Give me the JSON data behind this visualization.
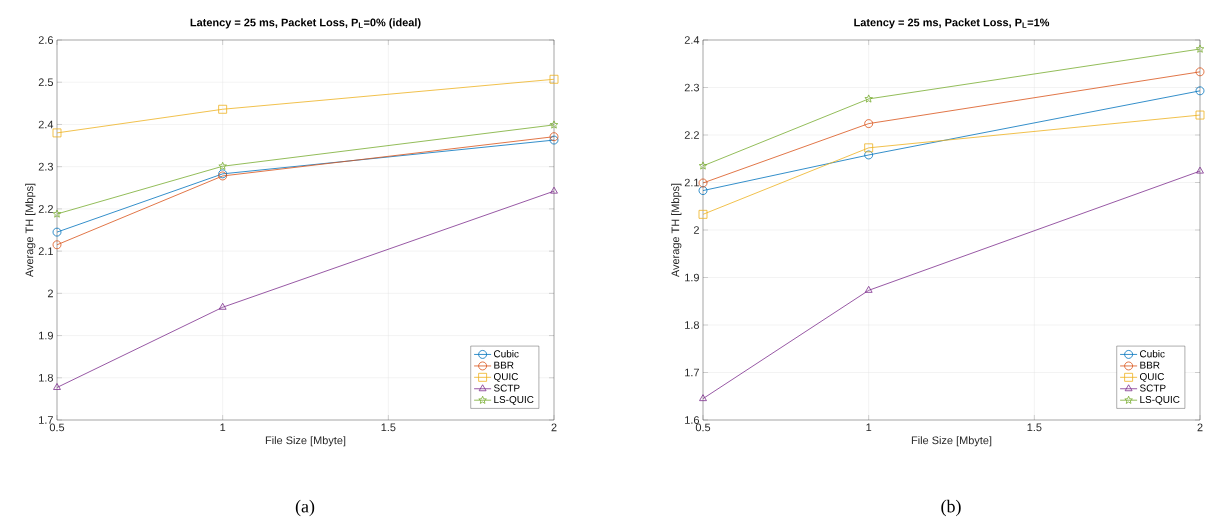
{
  "chart_data": [
    {
      "type": "line",
      "title": "Latency = 25 ms, Packet Loss, P$_{L}$=0% (ideal)",
      "xlabel": "File Size [Mbyte]",
      "ylabel": "Average TH [Mbps]",
      "annotations": [
        "(a)"
      ],
      "x": [
        0.5,
        1,
        2
      ],
      "xlim": [
        0.5,
        2
      ],
      "xticks": [
        0.5,
        1,
        1.5,
        2
      ],
      "ylim": [
        1.7,
        2.6
      ],
      "yticks": [
        1.7,
        1.8,
        1.9,
        2,
        2.1,
        2.2,
        2.3,
        2.4,
        2.5,
        2.6
      ],
      "grid": true,
      "legend": "bottom right",
      "series": [
        {
          "name": "Cubic",
          "color": "#0072bd",
          "marker": "circle",
          "values": [
            2.145,
            2.283,
            2.363
          ]
        },
        {
          "name": "BBR",
          "color": "#d95319",
          "marker": "circle",
          "values": [
            2.115,
            2.278,
            2.371
          ]
        },
        {
          "name": "QUIC",
          "color": "#edb120",
          "marker": "square",
          "values": [
            2.38,
            2.436,
            2.507
          ]
        },
        {
          "name": "SCTP",
          "color": "#7e2f8e",
          "marker": "triangle",
          "values": [
            1.777,
            1.967,
            2.242
          ]
        },
        {
          "name": "LS-QUIC",
          "color": "#77ac30",
          "marker": "star",
          "values": [
            2.188,
            2.301,
            2.399
          ]
        }
      ]
    },
    {
      "type": "line",
      "title": "Latency = 25 ms, Packet Loss, P$_{L}$=1%",
      "xlabel": "File Size [Mbyte]",
      "ylabel": "Average TH [Mbps]",
      "annotations": [
        "(b)"
      ],
      "x": [
        0.5,
        1,
        2
      ],
      "xlim": [
        0.5,
        2
      ],
      "xticks": [
        0.5,
        1,
        1.5,
        2
      ],
      "ylim": [
        1.6,
        2.4
      ],
      "yticks": [
        1.6,
        1.7,
        1.8,
        1.9,
        2,
        2.1,
        2.2,
        2.3,
        2.4
      ],
      "grid": true,
      "legend": "bottom right",
      "series": [
        {
          "name": "Cubic",
          "color": "#0072bd",
          "marker": "circle",
          "values": [
            2.083,
            2.158,
            2.293
          ]
        },
        {
          "name": "BBR",
          "color": "#d95319",
          "marker": "circle",
          "values": [
            2.099,
            2.224,
            2.333
          ]
        },
        {
          "name": "QUIC",
          "color": "#edb120",
          "marker": "square",
          "values": [
            2.033,
            2.173,
            2.242
          ]
        },
        {
          "name": "SCTP",
          "color": "#7e2f8e",
          "marker": "triangle",
          "values": [
            1.645,
            1.873,
            2.124
          ]
        },
        {
          "name": "LS-QUIC",
          "color": "#77ac30",
          "marker": "star",
          "values": [
            2.135,
            2.276,
            2.381
          ]
        }
      ]
    }
  ]
}
